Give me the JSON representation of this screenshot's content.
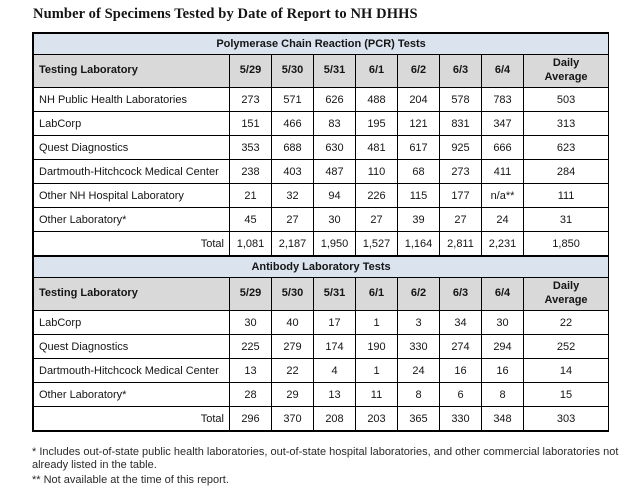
{
  "page": {
    "title": "Number of Specimens Tested by Date of Report to NH DHHS"
  },
  "colors": {
    "section_band_bg": "#dae3ee",
    "header_row_bg": "#d9d9d9",
    "border": "#000000"
  },
  "tables": [
    {
      "id": "pcr",
      "section_title": "Polymerase Chain Reaction (PCR) Tests",
      "columns": [
        "Testing Laboratory",
        "5/29",
        "5/30",
        "5/31",
        "6/1",
        "6/2",
        "6/3",
        "6/4",
        "Daily\nAverage"
      ],
      "rows": [
        [
          "NH Public Health Laboratories",
          "273",
          "571",
          "626",
          "488",
          "204",
          "578",
          "783",
          "503"
        ],
        [
          "LabCorp",
          "151",
          "466",
          "83",
          "195",
          "121",
          "831",
          "347",
          "313"
        ],
        [
          "Quest Diagnostics",
          "353",
          "688",
          "630",
          "481",
          "617",
          "925",
          "666",
          "623"
        ],
        [
          "Dartmouth-Hitchcock Medical Center",
          "238",
          "403",
          "487",
          "110",
          "68",
          "273",
          "411",
          "284"
        ],
        [
          "Other NH Hospital Laboratory",
          "21",
          "32",
          "94",
          "226",
          "115",
          "177",
          "n/a**",
          "111"
        ],
        [
          "Other Laboratory*",
          "45",
          "27",
          "30",
          "27",
          "39",
          "27",
          "24",
          "31"
        ]
      ],
      "total_row": [
        "Total",
        "1,081",
        "2,187",
        "1,950",
        "1,527",
        "1,164",
        "2,811",
        "2,231",
        "1,850"
      ]
    },
    {
      "id": "antibody",
      "section_title": "Antibody Laboratory Tests",
      "columns": [
        "Testing Laboratory",
        "5/29",
        "5/30",
        "5/31",
        "6/1",
        "6/2",
        "6/3",
        "6/4",
        "Daily\nAverage"
      ],
      "rows": [
        [
          "LabCorp",
          "30",
          "40",
          "17",
          "1",
          "3",
          "34",
          "30",
          "22"
        ],
        [
          "Quest Diagnostics",
          "225",
          "279",
          "174",
          "190",
          "330",
          "274",
          "294",
          "252"
        ],
        [
          "Dartmouth-Hitchcock Medical Center",
          "13",
          "22",
          "4",
          "1",
          "24",
          "16",
          "16",
          "14"
        ],
        [
          "Other Laboratory*",
          "28",
          "29",
          "13",
          "11",
          "8",
          "6",
          "8",
          "15"
        ]
      ],
      "total_row": [
        "Total",
        "296",
        "370",
        "208",
        "203",
        "365",
        "330",
        "348",
        "303"
      ]
    }
  ],
  "footnotes": {
    "line1": "* Includes out-of-state public health laboratories, out-of-state hospital laboratories, and other commercial laboratories not already listed in the table.",
    "line2": "** Not available at the time of this report."
  }
}
